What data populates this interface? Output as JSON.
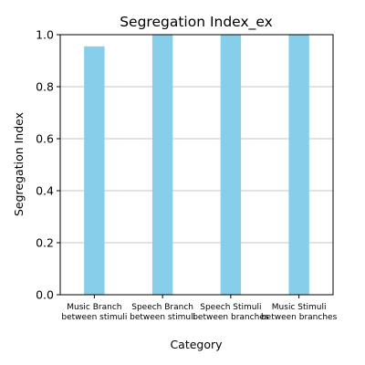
{
  "chart_data": {
    "type": "bar",
    "title": "Segregation Index_ex",
    "xlabel": "Category",
    "ylabel": "Segregation Index",
    "categories": [
      [
        "Music Branch",
        "between stimuli"
      ],
      [
        "Speech Branch",
        "between stimuli"
      ],
      [
        "Speech Stimuli",
        "between branches"
      ],
      [
        "Music Stimuli",
        "between branches"
      ]
    ],
    "values": [
      0.955,
      1.0,
      1.0,
      1.0
    ],
    "ylim": [
      0,
      1.0
    ],
    "yticks": [
      0.0,
      0.2,
      0.4,
      0.6,
      0.8,
      1.0
    ],
    "ytick_labels": [
      "0.0",
      "0.2",
      "0.4",
      "0.6",
      "0.8",
      "1.0"
    ],
    "grid": "horizontal",
    "colors": {
      "bar": "#87ceeb"
    }
  }
}
